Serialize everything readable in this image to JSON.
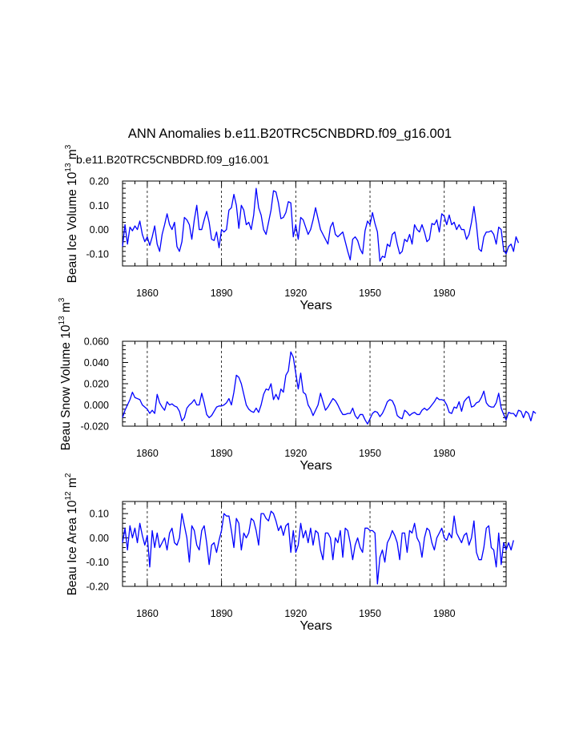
{
  "title": "ANN Anomalies b.e11.B20TRC5CNBDRD.f09_g16.001",
  "series_label": "b.e11.B20TRC5CNBDRD.f09_g16.001",
  "series_color": "#0000ff",
  "chart_data": [
    {
      "type": "line",
      "name": "ice-volume",
      "ylabel_main": "Beau Ice Volume 10",
      "ylabel_exp": "13",
      "ylabel_unit": "m",
      "ylabel_unit_exp": "3",
      "xlabel": "Years",
      "xlim": [
        1850,
        2005
      ],
      "ylim": [
        -0.15,
        0.2
      ],
      "x_ticks": [
        1860,
        1890,
        1920,
        1950,
        1980
      ],
      "x_tick_labels": [
        "1860",
        "1890",
        "1920",
        "1950",
        "1980"
      ],
      "y_ticks": [
        -0.1,
        0.0,
        0.1,
        0.2
      ],
      "y_tick_labels": [
        "-0.10",
        "0.00",
        "0.10",
        "0.20"
      ],
      "x_start": 1850,
      "values": [
        -0.07,
        0.02,
        -0.06,
        0.01,
        -0.005,
        0.015,
        0.0,
        0.035,
        -0.02,
        -0.05,
        -0.03,
        -0.065,
        -0.03,
        0.015,
        -0.06,
        -0.09,
        -0.02,
        0.02,
        0.065,
        0.02,
        0.0,
        0.03,
        -0.07,
        -0.09,
        -0.05,
        0.05,
        0.04,
        0.02,
        -0.04,
        0.04,
        0.1,
        0.0,
        0.0,
        0.04,
        0.075,
        0.03,
        -0.04,
        -0.045,
        -0.01,
        -0.075,
        -0.0,
        -0.01,
        0.0,
        0.08,
        0.09,
        0.145,
        0.1,
        0.005,
        0.1,
        0.08,
        0.02,
        0.03,
        0.0,
        0.06,
        0.17,
        0.09,
        0.06,
        0.0,
        -0.02,
        0.03,
        0.08,
        0.16,
        0.155,
        0.11,
        0.045,
        0.05,
        0.07,
        0.115,
        0.11,
        -0.03,
        0.02,
        -0.04,
        0.05,
        0.04,
        0.01,
        -0.02,
        0.0,
        0.04,
        0.09,
        0.045,
        0.0,
        -0.02,
        -0.04,
        -0.06,
        0.01,
        0.03,
        -0.02,
        -0.03,
        -0.02,
        -0.01,
        -0.05,
        -0.09,
        -0.125,
        -0.04,
        -0.03,
        -0.045,
        -0.08,
        -0.1,
        -0.005,
        0.035,
        0.02,
        0.07,
        0.025,
        -0.01,
        -0.13,
        -0.11,
        -0.115,
        -0.06,
        -0.07,
        -0.02,
        -0.01,
        -0.06,
        -0.1,
        -0.09,
        -0.04,
        -0.05,
        -0.02,
        -0.06,
        0.02,
        0.0,
        -0.01,
        0.02,
        -0.01,
        -0.05,
        -0.04,
        0.025,
        0.02,
        0.04,
        -0.01,
        0.065,
        0.055,
        0.02,
        0.06,
        0.02,
        0.03,
        0.0,
        0.02,
        0.0,
        0.0,
        -0.04,
        -0.02,
        0.03,
        0.095,
        0.02,
        -0.08,
        -0.09,
        -0.03,
        -0.01,
        -0.01,
        -0.005,
        -0.02,
        -0.06,
        0.01,
        0.0,
        -0.085,
        -0.1,
        -0.07,
        -0.06,
        -0.09,
        -0.03,
        -0.055
      ]
    },
    {
      "type": "line",
      "name": "snow-volume",
      "ylabel_main": "Beau Snow Volume 10",
      "ylabel_exp": "13",
      "ylabel_unit": "m",
      "ylabel_unit_exp": "3",
      "xlabel": "Years",
      "xlim": [
        1850,
        2005
      ],
      "ylim": [
        -0.02,
        0.06
      ],
      "x_ticks": [
        1860,
        1890,
        1920,
        1950,
        1980
      ],
      "x_tick_labels": [
        "1860",
        "1890",
        "1920",
        "1950",
        "1980"
      ],
      "y_ticks": [
        -0.02,
        0.0,
        0.02,
        0.04,
        0.06
      ],
      "y_tick_labels": [
        "-0.020",
        "0.000",
        "0.020",
        "0.040",
        "0.060"
      ],
      "x_start": 1850,
      "values": [
        -0.012,
        -0.005,
        0.0,
        0.005,
        0.012,
        0.007,
        0.006,
        0.005,
        0.0,
        -0.002,
        -0.004,
        -0.008,
        -0.005,
        -0.008,
        0.01,
        0.002,
        -0.002,
        -0.005,
        0.003,
        0.0,
        0.001,
        -0.001,
        -0.002,
        -0.006,
        -0.015,
        -0.012,
        -0.003,
        0.0,
        0.002,
        0.005,
        0.0,
        0.0,
        0.011,
        0.002,
        -0.009,
        -0.012,
        -0.01,
        -0.006,
        -0.002,
        -0.001,
        -0.001,
        0.0,
        0.002,
        0.006,
        0.0,
        0.012,
        0.028,
        0.026,
        0.02,
        0.01,
        0.0,
        -0.004,
        -0.006,
        -0.007,
        -0.003,
        -0.007,
        0.0,
        0.01,
        0.015,
        0.014,
        0.02,
        0.005,
        0.01,
        0.005,
        0.015,
        0.012,
        0.028,
        0.032,
        0.05,
        0.045,
        0.03,
        0.015,
        0.03,
        0.012,
        0.01,
        0.0,
        -0.004,
        -0.01,
        -0.005,
        0.0,
        0.011,
        0.003,
        -0.005,
        -0.002,
        0.002,
        0.006,
        0.004,
        0.0,
        -0.005,
        -0.009,
        -0.009,
        -0.008,
        -0.008,
        -0.003,
        -0.01,
        -0.013,
        -0.009,
        -0.009,
        -0.014,
        -0.018,
        -0.013,
        -0.008,
        -0.006,
        -0.007,
        -0.011,
        -0.008,
        -0.003,
        0.003,
        0.005,
        0.004,
        -0.001,
        -0.01,
        -0.012,
        -0.013,
        -0.005,
        -0.007,
        -0.01,
        -0.008,
        -0.007,
        -0.009,
        -0.009,
        -0.005,
        -0.003,
        -0.005,
        -0.003,
        0.0,
        0.003,
        0.007,
        0.005,
        0.005,
        0.004,
        0.0,
        -0.007,
        -0.008,
        -0.002,
        -0.003,
        0.003,
        -0.006,
        0.003,
        0.006,
        0.008,
        -0.002,
        -0.001,
        0.002,
        0.003,
        0.007,
        0.013,
        0.002,
        -0.001,
        -0.002,
        -0.002,
        0.002,
        0.011,
        -0.003,
        -0.009,
        -0.014,
        -0.007,
        -0.008,
        -0.008,
        -0.011,
        -0.005,
        -0.006,
        -0.012,
        -0.006,
        -0.008,
        -0.015,
        -0.006,
        -0.008
      ]
    },
    {
      "type": "line",
      "name": "ice-area",
      "ylabel_main": "Beau Ice Area 10",
      "ylabel_exp": "12",
      "ylabel_unit": "m",
      "ylabel_unit_exp": "2",
      "xlabel": "Years",
      "xlim": [
        1850,
        2005
      ],
      "ylim": [
        -0.2,
        0.15
      ],
      "x_ticks": [
        1860,
        1890,
        1920,
        1950,
        1980
      ],
      "x_tick_labels": [
        "1860",
        "1890",
        "1920",
        "1950",
        "1980"
      ],
      "y_ticks": [
        -0.2,
        -0.1,
        0.0,
        0.1
      ],
      "y_tick_labels": [
        "-0.20",
        "-0.10",
        "0.00",
        "0.10"
      ],
      "x_start": 1850,
      "values": [
        -0.02,
        0.04,
        -0.05,
        0.05,
        0.0,
        0.04,
        -0.02,
        0.06,
        0.01,
        -0.03,
        0.01,
        -0.12,
        0.03,
        -0.04,
        0.02,
        -0.04,
        -0.02,
        0.0,
        -0.05,
        0.02,
        0.04,
        -0.02,
        -0.03,
        0.0,
        0.1,
        0.05,
        0.0,
        -0.1,
        0.05,
        0.03,
        -0.03,
        -0.05,
        0.03,
        0.05,
        -0.02,
        -0.11,
        -0.03,
        -0.02,
        -0.06,
        -0.01,
        0.03,
        0.1,
        0.09,
        0.09,
        0.03,
        -0.04,
        0.08,
        0.06,
        -0.05,
        0.02,
        0.0,
        0.02,
        0.08,
        0.07,
        0.03,
        -0.03,
        0.1,
        0.1,
        0.08,
        0.07,
        0.11,
        0.1,
        0.07,
        0.03,
        0.05,
        0.01,
        0.05,
        0.06,
        -0.06,
        0.03,
        -0.06,
        -0.03,
        0.06,
        0.0,
        0.03,
        -0.02,
        0.04,
        -0.03,
        0.03,
        0.02,
        -0.05,
        -0.09,
        0.02,
        0.02,
        0.0,
        -0.09,
        0.0,
        -0.02,
        0.03,
        -0.08,
        0.04,
        0.03,
        -0.02,
        -0.09,
        -0.03,
        0.0,
        -0.04,
        -0.06,
        0.04,
        0.04,
        0.03,
        0.03,
        0.02,
        -0.19,
        -0.08,
        -0.05,
        -0.1,
        -0.02,
        0.0,
        0.03,
        0.01,
        -0.02,
        -0.09,
        0.02,
        0.02,
        -0.06,
        0.03,
        0.02,
        0.06,
        0.0,
        -0.02,
        -0.08,
        0.0,
        0.04,
        0.03,
        -0.02,
        -0.05,
        0.0,
        0.02,
        0.04,
        0.0,
        -0.01,
        0.02,
        0.0,
        0.09,
        0.02,
        0.0,
        -0.02,
        0.01,
        0.02,
        -0.03,
        0.0,
        0.07,
        -0.06,
        -0.09,
        -0.09,
        -0.04,
        0.04,
        0.05,
        -0.04,
        -0.05,
        -0.12,
        0.02,
        -0.11,
        -0.02,
        -0.05,
        -0.02,
        -0.05,
        -0.01
      ]
    }
  ]
}
